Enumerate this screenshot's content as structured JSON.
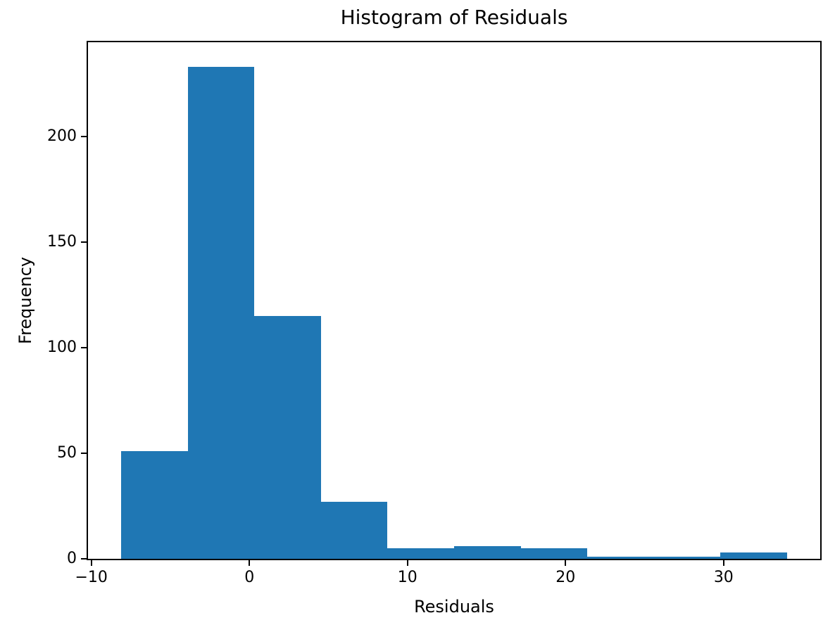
{
  "chart_data": {
    "type": "histogram",
    "title": "Histogram of Residuals",
    "xlabel": "Residuals",
    "ylabel": "Frequency",
    "bin_edges": [
      -8.1,
      -3.89,
      0.32,
      4.53,
      8.74,
      12.95,
      17.16,
      21.37,
      25.58,
      29.79,
      34.0
    ],
    "counts": [
      51,
      233,
      115,
      27,
      5,
      6,
      5,
      1,
      1,
      3
    ],
    "xticks": [
      -10,
      0,
      10,
      20,
      30
    ],
    "yticks": [
      0,
      50,
      100,
      150,
      200
    ],
    "xlim": [
      -10.21,
      36.11
    ],
    "ylim": [
      0,
      244.65
    ],
    "bar_color": "#1f77b4",
    "axis_color": "#000000",
    "background_color": "#ffffff",
    "grid": false,
    "legend": null
  }
}
